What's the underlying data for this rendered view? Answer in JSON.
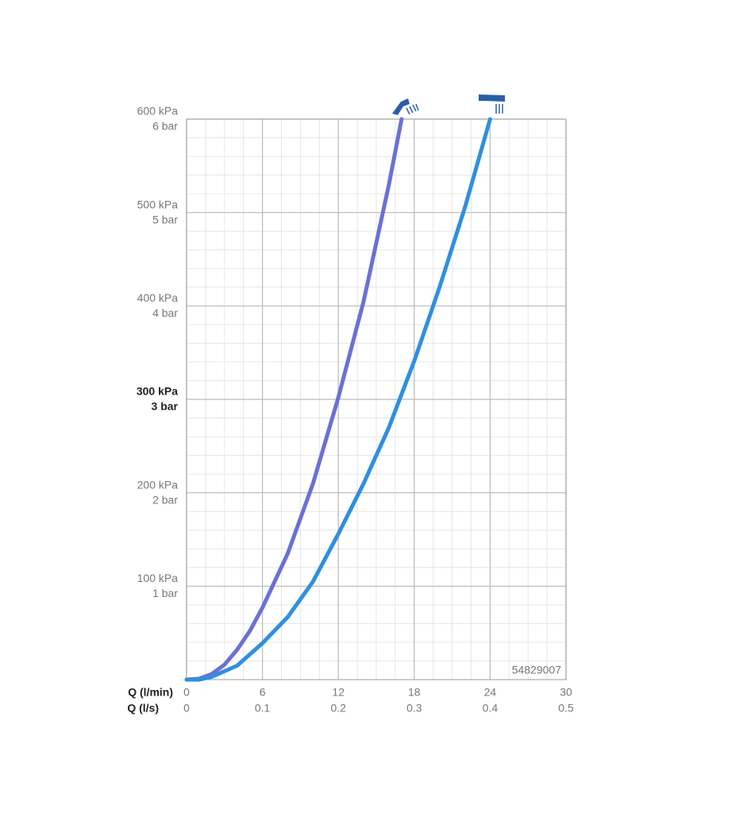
{
  "chart_data": {
    "type": "line",
    "xlabel": "Q (l/min)",
    "x2label": "Q (l/s)",
    "xlim": [
      0,
      30
    ],
    "xticks": [
      0,
      6,
      12,
      18,
      24,
      30
    ],
    "x2lim": [
      0,
      0.5
    ],
    "x2ticks": [
      0,
      0.1,
      0.2,
      0.3,
      0.4,
      0.5
    ],
    "ylim": [
      0,
      600
    ],
    "yticks": [
      {
        "value": 100,
        "label": "100 kPa"
      },
      {
        "value": 200,
        "label": "200 kPa"
      },
      {
        "value": 300,
        "label": "300 kPa"
      },
      {
        "value": 400,
        "label": "400 kPa"
      },
      {
        "value": 500,
        "label": "500 kPa"
      },
      {
        "value": 600,
        "label": "600 kPa"
      }
    ],
    "y2lim": [
      0,
      6
    ],
    "y2ticks": [
      {
        "value": 1,
        "label": "1 bar"
      },
      {
        "value": 2,
        "label": "2 bar"
      },
      {
        "value": 3,
        "label": "3 bar"
      },
      {
        "value": 4,
        "label": "4 bar"
      },
      {
        "value": 5,
        "label": "5 bar"
      },
      {
        "value": 6,
        "label": "6 bar"
      }
    ],
    "emphasis_ytick": 300,
    "grid": true,
    "annotation": "54829007",
    "series": [
      {
        "color": "#6b70d6",
        "x": [
          0,
          1,
          2,
          3,
          4,
          5,
          6,
          8,
          10,
          12,
          14,
          16,
          17
        ],
        "values": [
          0,
          1,
          6,
          16,
          32,
          52,
          77,
          135,
          210,
          302,
          405,
          530,
          600
        ]
      },
      {
        "color": "#2f8fdf",
        "x": [
          0,
          1,
          2,
          4,
          6,
          8,
          10,
          12,
          14,
          16,
          18,
          20,
          22,
          24
        ],
        "values": [
          0,
          0,
          3,
          15,
          39,
          67,
          105,
          156,
          210,
          270,
          341,
          420,
          505,
          600
        ]
      }
    ]
  }
}
